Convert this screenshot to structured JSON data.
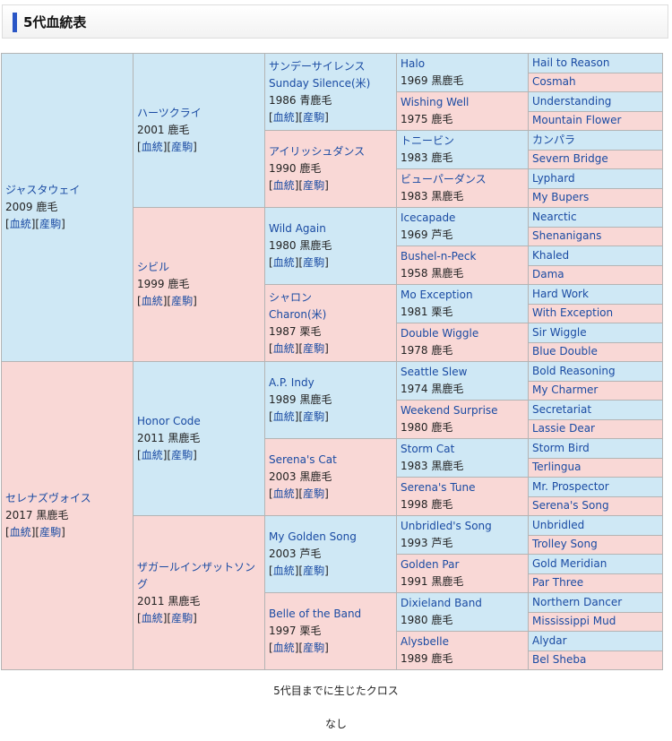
{
  "header": {
    "title": "5代血統表"
  },
  "links": {
    "pedigree": "血統",
    "offspring": "産駒"
  },
  "gen1": [
    {
      "name": "ジャスタウェイ",
      "info": "2009 鹿毛"
    },
    {
      "name": "セレナズヴォイス",
      "info": "2017 黒鹿毛"
    }
  ],
  "gen2": [
    {
      "name": "ハーツクライ",
      "info": "2001 鹿毛"
    },
    {
      "name": "シビル",
      "info": "1999 鹿毛"
    },
    {
      "name": "Honor Code",
      "info": "2011 黒鹿毛"
    },
    {
      "name": "ザガールインザットソング",
      "info": "2011 黒鹿毛"
    }
  ],
  "gen3": [
    {
      "name": "サンデーサイレンス",
      "name2": "Sunday Silence(米)",
      "info": "1986 青鹿毛"
    },
    {
      "name": "アイリッシュダンス",
      "info": "1990 鹿毛"
    },
    {
      "name": "Wild Again",
      "info": "1980 黒鹿毛"
    },
    {
      "name": "シャロン",
      "name2": "Charon(米)",
      "info": "1987 栗毛"
    },
    {
      "name": "A.P. Indy",
      "info": "1989 黒鹿毛"
    },
    {
      "name": "Serena's Cat",
      "info": "2003 黒鹿毛"
    },
    {
      "name": "My Golden Song",
      "info": "2003 芦毛"
    },
    {
      "name": "Belle of the Band",
      "info": "1997 栗毛"
    }
  ],
  "gen4": [
    {
      "name": "Halo",
      "info": "1969 黒鹿毛"
    },
    {
      "name": "Wishing Well",
      "info": "1975 鹿毛"
    },
    {
      "name": "トニービン",
      "info": "1983 鹿毛"
    },
    {
      "name": "ビューパーダンス",
      "info": "1983 黒鹿毛"
    },
    {
      "name": "Icecapade",
      "info": "1969 芦毛"
    },
    {
      "name": "Bushel-n-Peck",
      "info": "1958 黒鹿毛"
    },
    {
      "name": "Mo Exception",
      "info": "1981 栗毛"
    },
    {
      "name": "Double Wiggle",
      "info": "1978 鹿毛"
    },
    {
      "name": "Seattle Slew",
      "info": "1974 黒鹿毛"
    },
    {
      "name": "Weekend Surprise",
      "info": "1980 鹿毛"
    },
    {
      "name": "Storm Cat",
      "info": "1983 黒鹿毛"
    },
    {
      "name": "Serena's Tune",
      "info": "1998 鹿毛"
    },
    {
      "name": "Unbridled's Song",
      "info": "1993 芦毛"
    },
    {
      "name": "Golden Par",
      "info": "1991 黒鹿毛"
    },
    {
      "name": "Dixieland Band",
      "info": "1980 鹿毛"
    },
    {
      "name": "Alysbelle",
      "info": "1989 鹿毛"
    }
  ],
  "gen5": [
    "Hail to Reason",
    "Cosmah",
    "Understanding",
    "Mountain Flower",
    "カンパラ",
    "Severn Bridge",
    "Lyphard",
    "My Bupers",
    "Nearctic",
    "Shenanigans",
    "Khaled",
    "Dama",
    "Hard Work",
    "With Exception",
    "Sir Wiggle",
    "Blue Double",
    "Bold Reasoning",
    "My Charmer",
    "Secretariat",
    "Lassie Dear",
    "Storm Bird",
    "Terlingua",
    "Mr. Prospector",
    "Serena's Song",
    "Unbridled",
    "Trolley Song",
    "Gold Meridian",
    "Par Three",
    "Northern Dancer",
    "Mississippi Mud",
    "Alydar",
    "Bel Sheba"
  ],
  "footer": {
    "cross_title": "5代目までに生じたクロス",
    "cross_value": "なし"
  }
}
